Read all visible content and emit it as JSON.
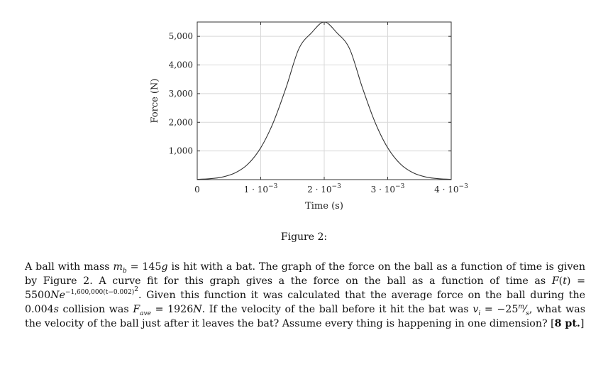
{
  "chart_data": {
    "type": "line",
    "xlabel": "Time (s)",
    "ylabel": "Force (N)",
    "xlim": [
      0,
      0.004
    ],
    "ylim": [
      0,
      5500
    ],
    "x_ticks": [
      {
        "value": 0,
        "base": "0",
        "exp": ""
      },
      {
        "value": 0.001,
        "base": "1 · 10",
        "exp": "−3"
      },
      {
        "value": 0.002,
        "base": "2 · 10",
        "exp": "−3"
      },
      {
        "value": 0.003,
        "base": "3 · 10",
        "exp": "−3"
      },
      {
        "value": 0.004,
        "base": "4 · 10",
        "exp": "−3"
      }
    ],
    "y_ticks": [
      {
        "value": 1000,
        "label": "1,000"
      },
      {
        "value": 2000,
        "label": "2,000"
      },
      {
        "value": 3000,
        "label": "3,000"
      },
      {
        "value": 4000,
        "label": "4,000"
      },
      {
        "value": 5000,
        "label": "5,000"
      }
    ],
    "grid": true,
    "series": [
      {
        "x": [
          0,
          0.0002,
          0.0004,
          0.0006,
          0.0008,
          0.001,
          0.0012,
          0.0014,
          0.0016,
          0.0018,
          0.002,
          0.0022,
          0.0024,
          0.0026,
          0.0028,
          0.003,
          0.0032,
          0.0034,
          0.0036,
          0.0038,
          0.004
        ],
        "y": [
          9.2,
          31,
          92,
          238,
          544,
          1110,
          2004,
          3216,
          4564,
          5124,
          5500,
          5124,
          4564,
          3216,
          2004,
          1110,
          544,
          238,
          92,
          31,
          9.2
        ],
        "color": "#333333"
      }
    ]
  },
  "caption": "Figure 2:",
  "problem": {
    "p1": "A ball with mass ",
    "m_b": "m",
    "m_b_sub": "b",
    "p2": " = 145",
    "g": "g",
    "p3": " is hit with a bat. The graph of the force on the ball as a function of time is given by Figure 2. A curve fit for this graph gives a the force on the ball as a function of time as ",
    "Ft": "F",
    "p4": "(",
    "t": "t",
    "p5": ") = 5500",
    "Ne": "Ne",
    "exp": "−1,600,000(t−0.002)",
    "exp2": "2",
    "p6": ". Given this function it was calculated that the average force on the ball during the 0.004",
    "s": "s",
    "p7": " collision was ",
    "F_ave": "F",
    "F_ave_sub": "ave",
    "p8": " = 1926",
    "N": "N",
    "p9": ". If the velocity of the ball before it hit the bat was ",
    "v_i": "v",
    "v_i_sub": "i",
    "p10": " = −25",
    "frac_num": "m",
    "frac_den": "s",
    "p11": ", what was the velocity of the ball just after it leaves the bat? Assume every thing is happening in one dimension? [",
    "points": "8 pt.",
    "p12": "]"
  }
}
